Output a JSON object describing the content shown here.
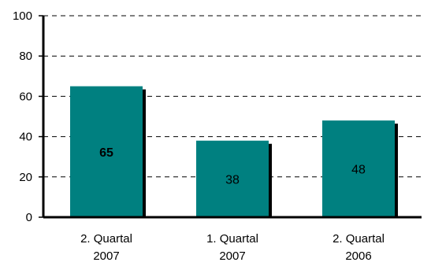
{
  "chart_data": {
    "type": "bar",
    "categories": [
      [
        "2. Quartal",
        "2007"
      ],
      [
        "1. Quartal",
        "2007"
      ],
      [
        "2. Quartal",
        "2006"
      ]
    ],
    "values": [
      65,
      38,
      48
    ],
    "data_labels": [
      "65",
      "38",
      "48"
    ],
    "data_label_bold": [
      true,
      false,
      false
    ],
    "ylim": [
      0,
      100
    ],
    "yticks": [
      "0",
      "20",
      "40",
      "60",
      "80",
      "100"
    ],
    "ytick_values": [
      0,
      20,
      40,
      60,
      80,
      100
    ],
    "grid": true,
    "bar_color": "#008080",
    "shadow_color": "#000000",
    "title": "",
    "xlabel": "",
    "ylabel": ""
  }
}
